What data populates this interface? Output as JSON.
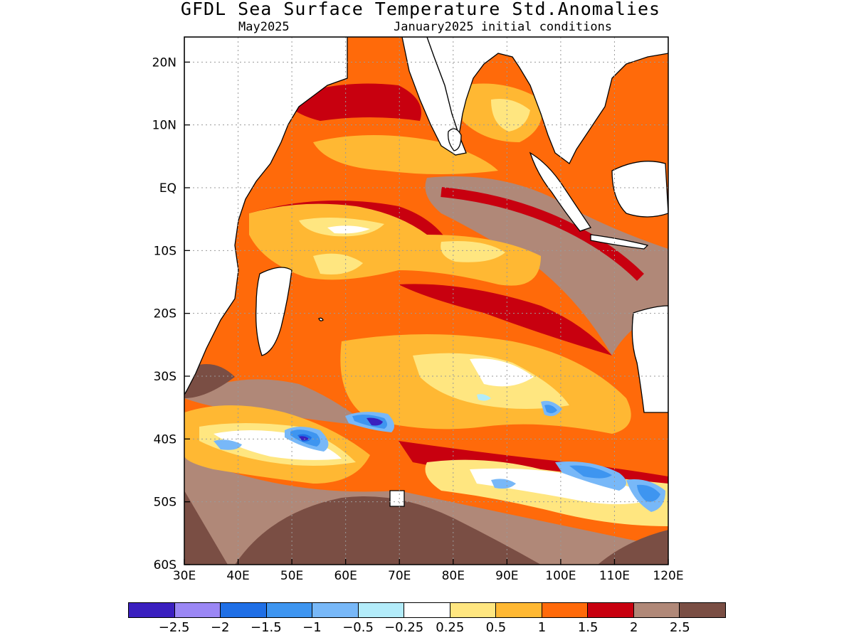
{
  "title": "GFDL Sea Surface Temperature Std.Anomalies",
  "subtitle_left": "May2025",
  "subtitle_right": "January2025 initial conditions",
  "map": {
    "region": "Indian Ocean",
    "variable": "Sea Surface Temperature Std.Anomalies",
    "lon_range": [
      30,
      120
    ],
    "lat_range": [
      -60,
      24
    ],
    "x_ticks": [
      "30E",
      "40E",
      "50E",
      "60E",
      "70E",
      "80E",
      "90E",
      "100E",
      "110E",
      "120E"
    ],
    "y_ticks": [
      "20N",
      "10N",
      "EQ",
      "10S",
      "20S",
      "30S",
      "40S",
      "50S",
      "60S"
    ],
    "grid": true
  },
  "colorbar": {
    "colors": [
      "#3a1fbf",
      "#9b87f5",
      "#1f6fe6",
      "#3e95f0",
      "#78b8f8",
      "#b3ecfa",
      "#ffffff",
      "#ffe680",
      "#ffb833",
      "#ff6a0a",
      "#c8000f",
      "#b08878",
      "#7a4e44"
    ],
    "labels": [
      "−2.5",
      "−2",
      "−1.5",
      "−1",
      "−0.5",
      "−0.25",
      "0.25",
      "0.5",
      "1",
      "1.5",
      "2",
      "2.5"
    ]
  }
}
